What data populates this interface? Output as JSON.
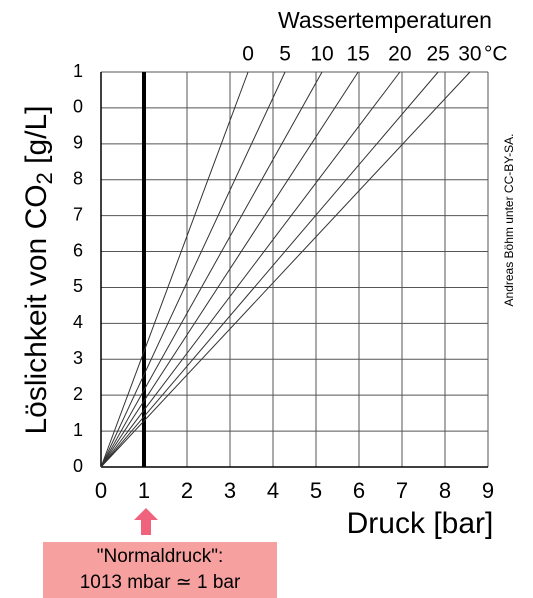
{
  "chart_data": {
    "type": "line",
    "title": "Wassertemperaturen",
    "top_unit": "°C",
    "x_label": "Druck [bar]",
    "y_label": {
      "main": "Löslichkeit von CO",
      "sub": "2",
      "rest": " [g/L]"
    },
    "xlim": [
      0,
      9
    ],
    "xticks": [
      0,
      1,
      2,
      3,
      4,
      5,
      6,
      7,
      8,
      9
    ],
    "ylim": [
      0,
      11
    ],
    "yticks": [
      0,
      1,
      2,
      3,
      4,
      5,
      6,
      7,
      8,
      9,
      {
        "value": 10,
        "label": "0"
      },
      {
        "value": 11,
        "label": "1"
      }
    ],
    "grid": true,
    "color": "#333333",
    "series": [
      {
        "name": "0",
        "x": [
          0,
          3.42
        ],
        "values": [
          0,
          11
        ]
      },
      {
        "name": "5",
        "x": [
          0,
          4.28
        ],
        "values": [
          0,
          11
        ]
      },
      {
        "name": "10",
        "x": [
          0,
          5.14
        ],
        "values": [
          0,
          11
        ]
      },
      {
        "name": "15",
        "x": [
          0,
          5.98
        ],
        "values": [
          0,
          11
        ]
      },
      {
        "name": "20",
        "x": [
          0,
          6.95
        ],
        "values": [
          0,
          11
        ]
      },
      {
        "name": "25",
        "x": [
          0,
          7.84
        ],
        "values": [
          0,
          11
        ]
      },
      {
        "name": "30",
        "x": [
          0,
          8.58
        ],
        "values": [
          0,
          11
        ]
      }
    ],
    "marker_x": 1,
    "annotation": [
      "\"Normaldruck\":",
      "1013 mbar ≃ 1 bar"
    ],
    "credit": "Andreas Böhm unter CC-BY-SA."
  }
}
